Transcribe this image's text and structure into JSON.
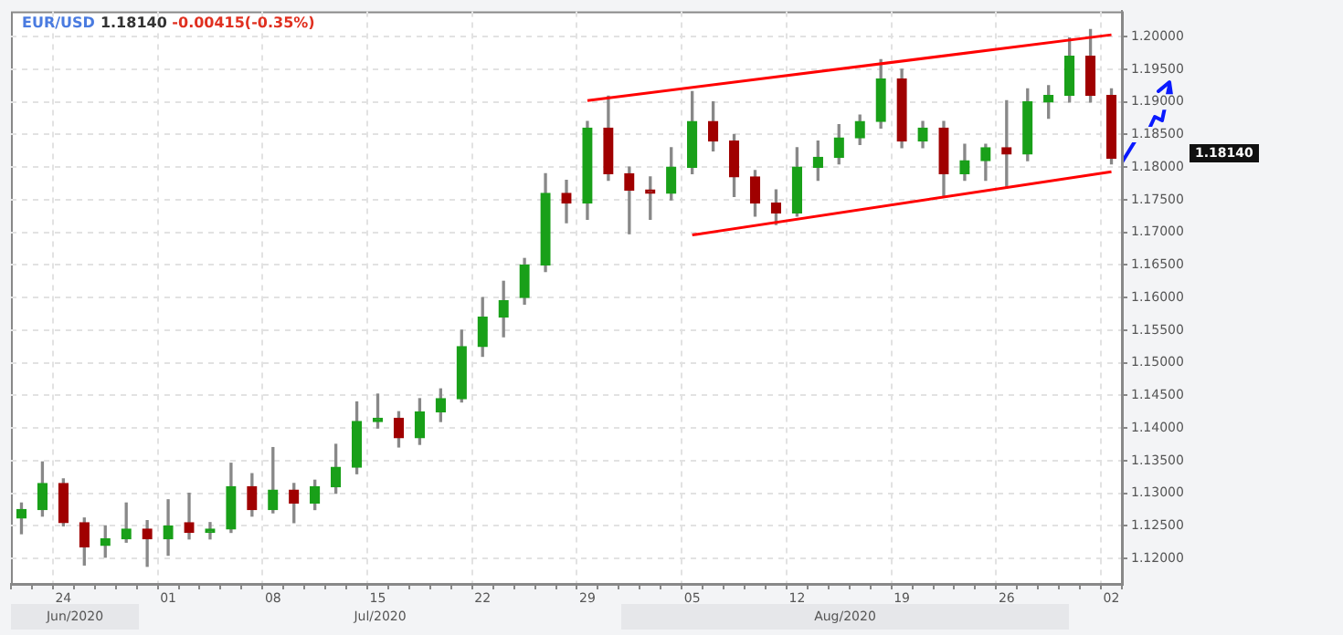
{
  "chart_data": {
    "type": "candlestick",
    "title": "EUR/USD",
    "subtitle": "1.18140",
    "annotations": [
      "-0.00415(-0.35%)",
      "Jun/2020",
      "Jul/2020",
      "Aug/2020",
      "1.18140"
    ],
    "categories": [
      null,
      null,
      "24",
      null,
      null,
      null,
      null,
      "01",
      null,
      null,
      null,
      null,
      "08",
      null,
      null,
      null,
      null,
      "15",
      null,
      null,
      null,
      null,
      "22",
      null,
      null,
      null,
      null,
      "29",
      null,
      null,
      null,
      null,
      "05",
      null,
      null,
      null,
      null,
      "12",
      null,
      null,
      null,
      null,
      "19",
      null,
      null,
      null,
      null,
      "26",
      null,
      null,
      null,
      null,
      "02"
    ],
    "ohlc": [
      [
        1.1262,
        1.1285,
        1.1238,
        1.1275
      ],
      [
        1.1275,
        1.1348,
        1.1265,
        1.1315
      ],
      [
        1.1315,
        1.1322,
        1.125,
        1.1255
      ],
      [
        1.1255,
        1.1262,
        1.119,
        1.1218
      ],
      [
        1.122,
        1.125,
        1.1202,
        1.123
      ],
      [
        1.123,
        1.1285,
        1.1225,
        1.1245
      ],
      [
        1.1245,
        1.1258,
        1.1188,
        1.123
      ],
      [
        1.123,
        1.129,
        1.1205,
        1.125
      ],
      [
        1.1255,
        1.13,
        1.123,
        1.124
      ],
      [
        1.124,
        1.1255,
        1.123,
        1.1245
      ],
      [
        1.1245,
        1.1346,
        1.124,
        1.131
      ],
      [
        1.131,
        1.133,
        1.1265,
        1.1275
      ],
      [
        1.1275,
        1.137,
        1.127,
        1.1305
      ],
      [
        1.1305,
        1.1315,
        1.1255,
        1.1285
      ],
      [
        1.1285,
        1.132,
        1.1275,
        1.131
      ],
      [
        1.131,
        1.1375,
        1.13,
        1.134
      ],
      [
        1.134,
        1.144,
        1.133,
        1.141
      ],
      [
        1.141,
        1.1452,
        1.14,
        1.1415
      ],
      [
        1.1415,
        1.1425,
        1.1371,
        1.1385
      ],
      [
        1.1385,
        1.1445,
        1.1375,
        1.1425
      ],
      [
        1.1425,
        1.146,
        1.141,
        1.1445
      ],
      [
        1.1445,
        1.155,
        1.144,
        1.1525
      ],
      [
        1.1525,
        1.16,
        1.151,
        1.157
      ],
      [
        1.157,
        1.1625,
        1.154,
        1.1595
      ],
      [
        1.16,
        1.166,
        1.159,
        1.165
      ],
      [
        1.165,
        1.179,
        1.164,
        1.176
      ],
      [
        1.176,
        1.178,
        1.1715,
        1.1745
      ],
      [
        1.1745,
        1.187,
        1.172,
        1.186
      ],
      [
        1.186,
        1.1909,
        1.178,
        1.179
      ],
      [
        1.179,
        1.18,
        1.1698,
        1.1765
      ],
      [
        1.1765,
        1.1785,
        1.172,
        1.176
      ],
      [
        1.176,
        1.183,
        1.175,
        1.18
      ],
      [
        1.18,
        1.1916,
        1.179,
        1.187
      ],
      [
        1.187,
        1.19,
        1.1825,
        1.184
      ],
      [
        1.184,
        1.185,
        1.1755,
        1.1785
      ],
      [
        1.1785,
        1.1795,
        1.1725,
        1.1745
      ],
      [
        1.1745,
        1.1765,
        1.1712,
        1.173
      ],
      [
        1.173,
        1.183,
        1.1725,
        1.18
      ],
      [
        1.18,
        1.184,
        1.178,
        1.1815
      ],
      [
        1.1815,
        1.1865,
        1.1805,
        1.1845
      ],
      [
        1.1845,
        1.188,
        1.1835,
        1.187
      ],
      [
        1.187,
        1.1965,
        1.186,
        1.1935
      ],
      [
        1.1935,
        1.195,
        1.183,
        1.184
      ],
      [
        1.184,
        1.187,
        1.183,
        1.186
      ],
      [
        1.186,
        1.187,
        1.1755,
        1.179
      ],
      [
        1.179,
        1.1835,
        1.178,
        1.181
      ],
      [
        1.181,
        1.1835,
        1.178,
        1.183
      ],
      [
        1.183,
        1.1902,
        1.1768,
        1.182
      ],
      [
        1.182,
        1.192,
        1.181,
        1.19
      ],
      [
        1.19,
        1.1925,
        1.1875,
        1.191
      ],
      [
        1.191,
        1.1998,
        1.19,
        1.197
      ],
      [
        1.197,
        1.2011,
        1.19,
        1.191
      ],
      [
        1.191,
        1.192,
        1.1805,
        1.1814
      ]
    ],
    "colors": [
      "#19a019",
      "#19a019",
      "#a00000",
      "#a00000",
      "#19a019",
      "#19a019",
      "#a00000",
      "#19a019",
      "#a00000",
      "#19a019",
      "#19a019",
      "#a00000",
      "#19a019",
      "#a00000",
      "#19a019",
      "#19a019",
      "#19a019",
      "#19a019",
      "#a00000",
      "#19a019",
      "#19a019",
      "#19a019",
      "#19a019",
      "#19a019",
      "#19a019",
      "#19a019",
      "#a00000",
      "#19a019",
      "#a00000",
      "#a00000",
      "#a00000",
      "#19a019",
      "#19a019",
      "#a00000",
      "#a00000",
      "#a00000",
      "#a00000",
      "#19a019",
      "#19a019",
      "#19a019",
      "#19a019",
      "#19a019",
      "#a00000",
      "#19a019",
      "#a00000",
      "#19a019",
      "#19a019",
      "#a00000",
      "#19a019",
      "#19a019",
      "#19a019",
      "#a00000",
      "#a00000"
    ],
    "series": [
      {
        "type": "line",
        "x": [
          "29",
          "02"
        ],
        "values": [
          1.1902,
          1.2003
        ],
        "color": "#ff0000",
        "marker": "none"
      },
      {
        "type": "line",
        "x": [
          "05",
          "02"
        ],
        "values": [
          1.1696,
          1.1793
        ],
        "color": "#ff0000",
        "marker": "none"
      }
    ],
    "ylim": [
      1.1161,
      1.2039
    ],
    "yticks": [
      {
        "value": 1.12,
        "label": "1.12000"
      },
      {
        "value": 1.125,
        "label": "1.12500"
      },
      {
        "value": 1.13,
        "label": "1.13000"
      },
      {
        "value": 1.135,
        "label": "1.13500"
      },
      {
        "value": 1.14,
        "label": "1.14000"
      },
      {
        "value": 1.145,
        "label": "1.14500"
      },
      {
        "value": 1.15,
        "label": "1.15000"
      },
      {
        "value": 1.155,
        "label": "1.15500"
      },
      {
        "value": 1.16,
        "label": "1.16000"
      },
      {
        "value": 1.165,
        "label": "1.16500"
      },
      {
        "value": 1.17,
        "label": "1.17000"
      },
      {
        "value": 1.175,
        "label": "1.17500"
      },
      {
        "value": 1.18,
        "label": "1.18000"
      },
      {
        "value": 1.185,
        "label": "1.18500"
      },
      {
        "value": 1.19,
        "label": "1.19000"
      },
      {
        "value": 1.195,
        "label": "1.19500"
      },
      {
        "value": 1.2,
        "label": "1.20000"
      }
    ],
    "grid": true
  }
}
